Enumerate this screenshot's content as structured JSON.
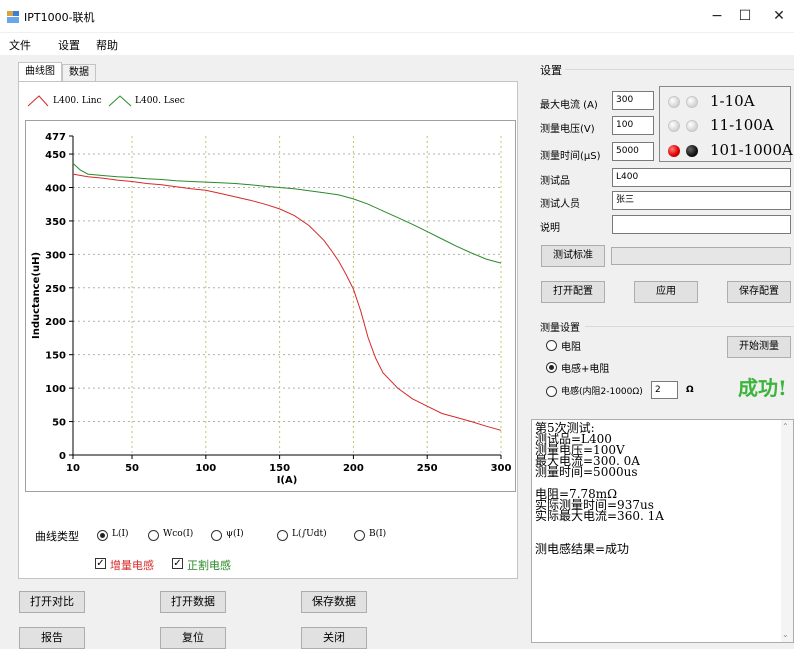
{
  "window": {
    "title": "IPT1000-联机",
    "min_glyph": "−",
    "max_glyph": "☐",
    "close_glyph": "✕"
  },
  "menu": {
    "file": "文件",
    "settings": "设置",
    "help": "帮助"
  },
  "tabs": {
    "curve": "曲线图",
    "data": "数据"
  },
  "legend": [
    {
      "name": "L400. Linc",
      "color": "#d62a2a"
    },
    {
      "name": "L400. Lsec",
      "color": "#2a8a2a"
    }
  ],
  "chart_data": {
    "type": "line",
    "xlabel": "I(A)",
    "ylabel": "Inductance(uH)",
    "xlim": [
      10,
      300
    ],
    "ylim": [
      0,
      477
    ],
    "xticks": [
      10,
      50,
      100,
      150,
      200,
      250,
      300
    ],
    "yticks": [
      0,
      50,
      100,
      150,
      200,
      250,
      300,
      350,
      400,
      450,
      477
    ],
    "grid": true,
    "series": [
      {
        "name": "L400. Linc",
        "color": "#d62a2a",
        "x": [
          10,
          20,
          30,
          40,
          50,
          60,
          70,
          80,
          90,
          100,
          110,
          120,
          130,
          140,
          150,
          160,
          170,
          180,
          185,
          190,
          195,
          200,
          205,
          210,
          215,
          220,
          230,
          240,
          250,
          260,
          270,
          280,
          290,
          300
        ],
        "y": [
          420,
          416,
          414,
          411,
          409,
          406,
          404,
          401,
          398,
          396,
          391,
          386,
          381,
          375,
          368,
          358,
          343,
          321,
          306,
          290,
          270,
          248,
          215,
          175,
          145,
          123,
          100,
          84,
          73,
          62,
          56,
          50,
          43,
          37
        ]
      },
      {
        "name": "L400. Lsec",
        "color": "#2a8a2a",
        "x": [
          10,
          15,
          20,
          30,
          40,
          50,
          60,
          70,
          80,
          90,
          100,
          110,
          120,
          130,
          140,
          150,
          160,
          170,
          180,
          190,
          200,
          210,
          220,
          230,
          240,
          250,
          260,
          270,
          280,
          290,
          300
        ],
        "y": [
          436,
          426,
          420,
          418,
          416,
          415,
          413,
          412,
          410,
          409,
          408,
          407,
          406,
          404,
          402,
          400,
          398,
          395,
          392,
          389,
          383,
          375,
          365,
          355,
          345,
          334,
          323,
          312,
          302,
          293,
          287
        ]
      }
    ]
  },
  "curve_type": {
    "label": "曲线类型",
    "options": [
      "L(I)",
      "Wco(I)",
      "ψ(I)",
      "L(∫Udt)",
      "B(I)"
    ],
    "selected": "L(I)"
  },
  "checks": {
    "incremental": "增量电感",
    "secant": "正割电感"
  },
  "left_buttons": {
    "open_compare": "打开对比",
    "open_data": "打开数据",
    "save_data": "保存数据",
    "report": "报告",
    "reset": "复位",
    "close": "关闭"
  },
  "settings": {
    "group_title": "设置",
    "max_current_label": "最大电流 (A)",
    "max_current": "300",
    "test_voltage_label": "测量电压(V)",
    "test_voltage": "100",
    "test_time_label": "测量时间(μS)",
    "test_time": "5000",
    "ranges": [
      "1-10A",
      "11-100A",
      "101-1000A"
    ],
    "dut_label": "测试品",
    "dut": "L400",
    "tester_label": "测试人员",
    "tester": "张三",
    "note_label": "说明",
    "note": "",
    "standard_button": "测试标准",
    "standard_value": "",
    "open_config": "打开配置",
    "apply": "应用",
    "save_config": "保存配置"
  },
  "measure": {
    "group_title": "测量设置",
    "opt_resistance": "电阻",
    "opt_res_ind": "电感+电阻",
    "opt_ind": "电感(内阻2-1000Ω)",
    "ind_value": "2",
    "ind_unit": "Ω",
    "start_button": "开始测量",
    "status": "成功!"
  },
  "log": [
    "第5次测试:",
    "测试品=L400",
    "测量电压=100V",
    "最大电流=300. 0A",
    "测量时间=5000us",
    "",
    "电阻=7.78mΩ",
    "实际测量时间=937us",
    "实际最大电流=360. 1A",
    "",
    "测电感结果=成功"
  ]
}
